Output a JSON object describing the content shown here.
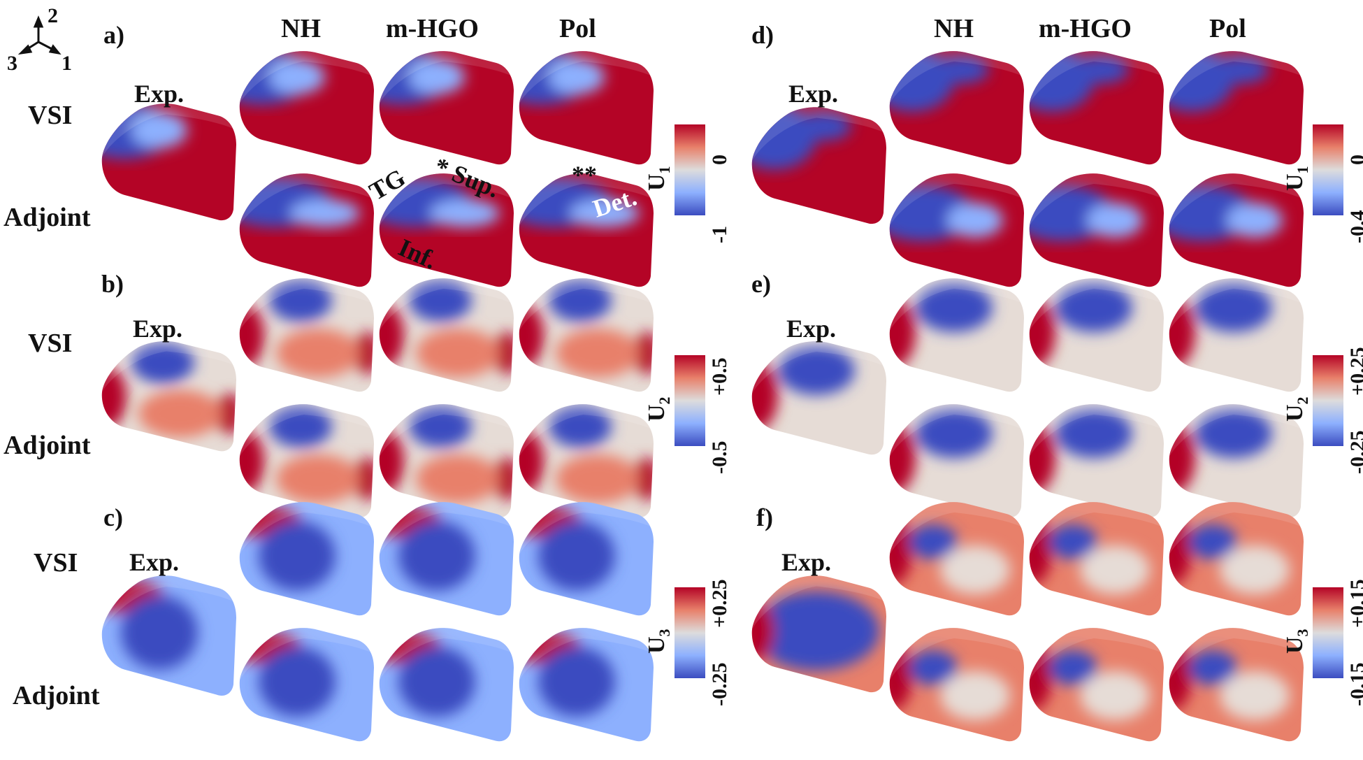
{
  "axes_triad": {
    "labels": [
      "2",
      "3",
      "1"
    ]
  },
  "left_group": {
    "columns": [
      "NH",
      "m-HGO",
      "Pol"
    ],
    "rows": [
      "VSI",
      "Adjoint"
    ],
    "experimental_label": "Exp.",
    "panels": [
      {
        "letter": "a)",
        "quantity": "U",
        "subscript": "1",
        "min": "-1",
        "max": "0"
      },
      {
        "letter": "b)",
        "quantity": "U",
        "subscript": "2",
        "min": "-0.5",
        "max": "+0.5"
      },
      {
        "letter": "c)",
        "quantity": "U",
        "subscript": "3",
        "min": "-0.25",
        "max": "+0.25"
      }
    ],
    "annotations": {
      "tg": "TG",
      "sup": "* Sup.",
      "inf": "Inf.",
      "double_star": "**",
      "det": "Det."
    }
  },
  "right_group": {
    "columns": [
      "NH",
      "m-HGO",
      "Pol"
    ],
    "experimental_label": "Exp.",
    "panels": [
      {
        "letter": "d)",
        "quantity": "U",
        "subscript": "1",
        "min": "-0.4",
        "max": "0"
      },
      {
        "letter": "e)",
        "quantity": "U",
        "subscript": "2",
        "min": "-0.25",
        "max": "+0.25"
      },
      {
        "letter": "f)",
        "quantity": "U",
        "subscript": "3",
        "min": "-0.15",
        "max": "+0.15"
      }
    ]
  },
  "colors": {
    "red": "#b40426",
    "light": "#e6dcd6",
    "blue": "#3b4cc0",
    "midred": "#e8806a",
    "midblue": "#8db0fe"
  }
}
